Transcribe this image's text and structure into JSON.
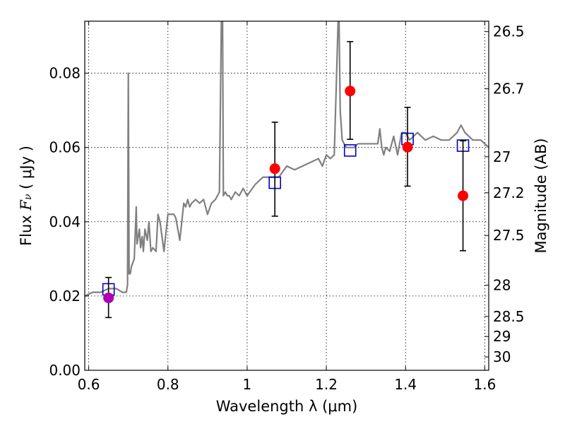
{
  "chart_data": {
    "type": "scatter",
    "xlabel": "Wavelength  λ (μm)",
    "ylabel_prefix": "Flux  ",
    "ylabel_symbol": "F",
    "ylabel_symbol_sub": "ν",
    "ylabel_suffix": "  ( μJy )",
    "y2label": "Magnitude (AB)",
    "xlim": [
      0.59,
      1.61
    ],
    "ylim": [
      0.0,
      0.094
    ],
    "x_ticks": [
      0.6,
      0.8,
      1.0,
      1.2,
      1.4,
      1.6
    ],
    "x_tick_labels": [
      "0.6",
      "0.8",
      "1",
      "1.2",
      "1.4",
      "1.6"
    ],
    "y_ticks": [
      0.0,
      0.02,
      0.04,
      0.06,
      0.08
    ],
    "y_tick_labels": [
      "0.00",
      "0.02",
      "0.04",
      "0.06",
      "0.08"
    ],
    "y2_ticks": [
      {
        "label": "26.5",
        "flux": 0.0912
      },
      {
        "label": "26.7",
        "flux": 0.0758
      },
      {
        "label": "27",
        "flux": 0.0575
      },
      {
        "label": "27.2",
        "flux": 0.0478
      },
      {
        "label": "27.5",
        "flux": 0.0363
      },
      {
        "label": "28",
        "flux": 0.0229
      },
      {
        "label": "28.5",
        "flux": 0.0145
      },
      {
        "label": "29",
        "flux": 0.0091
      },
      {
        "label": "30",
        "flux": 0.0036
      }
    ],
    "grid": true,
    "sed_model": {
      "color": "#808080",
      "x": [
        0.59,
        0.61,
        0.63,
        0.65,
        0.67,
        0.685,
        0.695,
        0.698,
        0.7,
        0.702,
        0.705,
        0.708,
        0.715,
        0.72,
        0.722,
        0.728,
        0.731,
        0.735,
        0.738,
        0.742,
        0.748,
        0.752,
        0.757,
        0.762,
        0.77,
        0.775,
        0.78,
        0.79,
        0.8,
        0.81,
        0.815,
        0.82,
        0.83,
        0.84,
        0.845,
        0.85,
        0.855,
        0.86,
        0.87,
        0.88,
        0.89,
        0.9,
        0.91,
        0.92,
        0.93,
        0.935,
        0.938,
        0.94,
        0.945,
        0.95,
        0.955,
        0.96,
        0.97,
        0.98,
        0.99,
        1.0,
        1.02,
        1.04,
        1.06,
        1.08,
        1.1,
        1.12,
        1.14,
        1.16,
        1.18,
        1.19,
        1.2,
        1.21,
        1.22,
        1.23,
        1.232,
        1.235,
        1.24,
        1.25,
        1.26,
        1.27,
        1.28,
        1.3,
        1.32,
        1.33,
        1.335,
        1.34,
        1.345,
        1.35,
        1.36,
        1.37,
        1.38,
        1.39,
        1.4,
        1.41,
        1.42,
        1.43,
        1.45,
        1.47,
        1.49,
        1.51,
        1.53,
        1.54,
        1.55,
        1.57,
        1.59,
        1.61
      ],
      "y": [
        0.02,
        0.021,
        0.021,
        0.022,
        0.022,
        0.021,
        0.021,
        0.023,
        0.08,
        0.026,
        0.026,
        0.028,
        0.03,
        0.044,
        0.034,
        0.038,
        0.033,
        0.036,
        0.032,
        0.038,
        0.035,
        0.04,
        0.032,
        0.033,
        0.032,
        0.042,
        0.04,
        0.032,
        0.042,
        0.042,
        0.042,
        0.041,
        0.035,
        0.045,
        0.044,
        0.046,
        0.044,
        0.045,
        0.046,
        0.045,
        0.046,
        0.042,
        0.045,
        0.046,
        0.048,
        0.095,
        0.095,
        0.047,
        0.048,
        0.047,
        0.047,
        0.046,
        0.048,
        0.047,
        0.049,
        0.047,
        0.05,
        0.052,
        0.052,
        0.052,
        0.055,
        0.054,
        0.055,
        0.056,
        0.057,
        0.055,
        0.058,
        0.057,
        0.058,
        0.095,
        0.095,
        0.07,
        0.062,
        0.06,
        0.06,
        0.06,
        0.061,
        0.061,
        0.061,
        0.061,
        0.065,
        0.06,
        0.058,
        0.06,
        0.059,
        0.063,
        0.058,
        0.064,
        0.064,
        0.062,
        0.063,
        0.064,
        0.062,
        0.063,
        0.062,
        0.062,
        0.064,
        0.066,
        0.064,
        0.062,
        0.062,
        0.06
      ]
    },
    "model_boxes": {
      "color": "#0000c8",
      "points": [
        {
          "x": 0.65,
          "y": 0.0218
        },
        {
          "x": 1.07,
          "y": 0.0505
        },
        {
          "x": 1.26,
          "y": 0.0592
        },
        {
          "x": 1.405,
          "y": 0.0623
        },
        {
          "x": 1.545,
          "y": 0.0605
        }
      ]
    },
    "observed": {
      "points": [
        {
          "x": 0.65,
          "y": 0.0195,
          "err_lo": 0.0053,
          "err_hi": 0.0055,
          "color": "#b000b0"
        },
        {
          "x": 1.07,
          "y": 0.0543,
          "err_lo": 0.0128,
          "err_hi": 0.0125,
          "color": "#ff0000"
        },
        {
          "x": 1.26,
          "y": 0.0752,
          "err_lo": 0.013,
          "err_hi": 0.0133,
          "color": "#ff0000"
        },
        {
          "x": 1.405,
          "y": 0.0601,
          "err_lo": 0.0105,
          "err_hi": 0.0107,
          "color": "#ff0000"
        },
        {
          "x": 1.545,
          "y": 0.047,
          "err_lo": 0.0148,
          "err_hi": 0.0148,
          "color": "#ff0000"
        }
      ]
    }
  }
}
